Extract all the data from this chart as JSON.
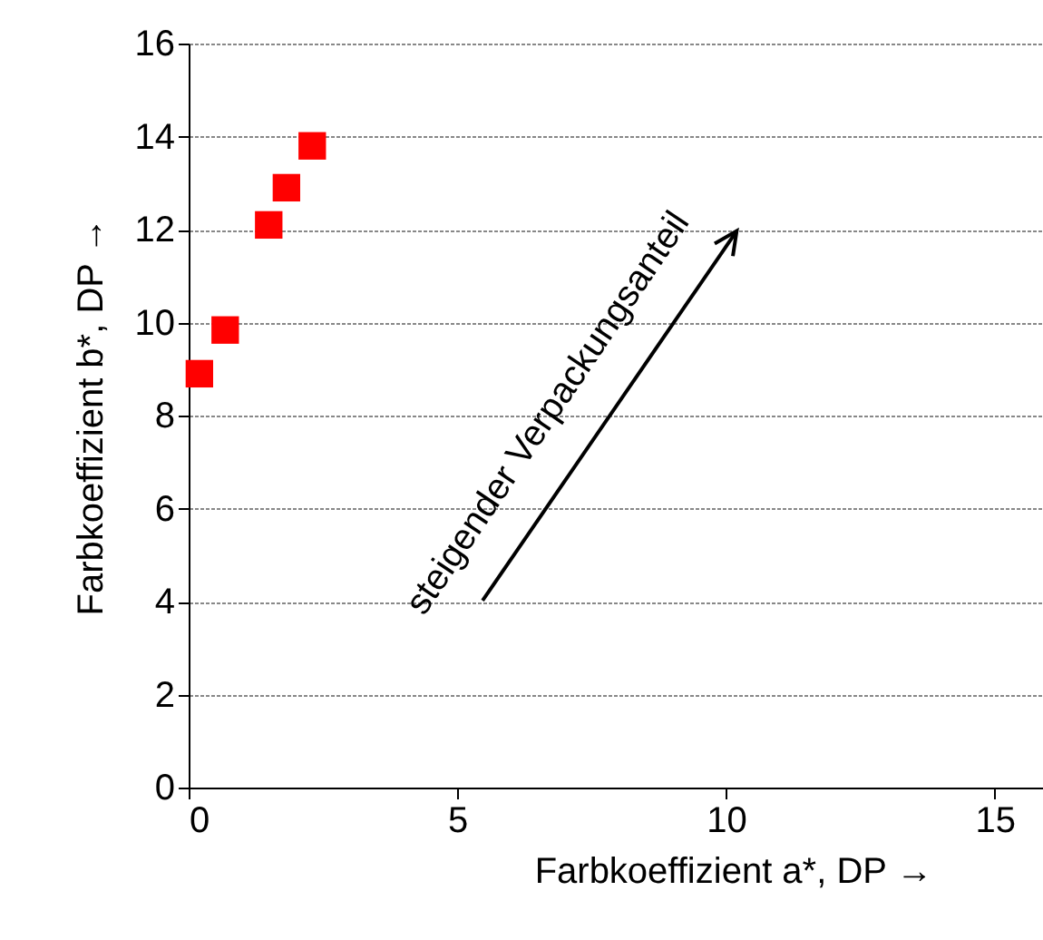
{
  "chart_data": {
    "type": "scatter",
    "xlabel": "Farbkoeffizient a*, DP →",
    "ylabel": "Farbkoeffizient b*, DP →",
    "x": [
      0.2,
      0.68,
      1.49,
      1.82,
      2.3
    ],
    "series": [
      {
        "color": "#ff0000",
        "values": [
          8.9,
          9.84,
          12.1,
          12.9,
          13.8
        ]
      }
    ],
    "marker": "square",
    "xlim": [
      0,
      15.9
    ],
    "xticks": [
      0,
      5,
      10,
      15
    ],
    "ylim": [
      0,
      16
    ],
    "yticks": [
      0,
      2,
      4,
      6,
      8,
      10,
      12,
      14,
      16
    ],
    "grid": "y",
    "legend": false,
    "annotations": [
      "steigender Verpackungsanteil"
    ]
  }
}
